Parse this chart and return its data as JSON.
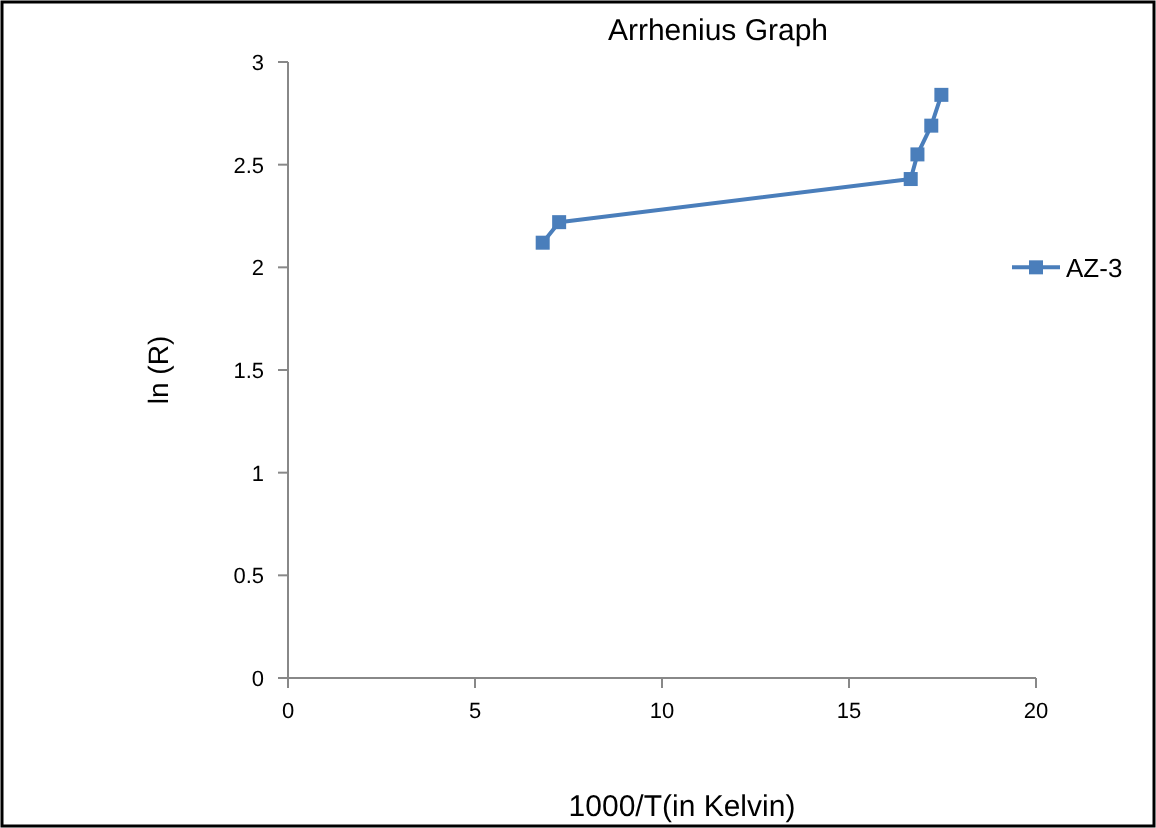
{
  "chart_data": {
    "type": "line",
    "title": "Arrhenius Graph",
    "xlabel": "1000/T(in Kelvin)",
    "ylabel": "ln (R)",
    "xlim": [
      0,
      20
    ],
    "xticks": [
      0,
      5,
      10,
      15,
      20
    ],
    "ylim": [
      0,
      3
    ],
    "yticks": [
      0,
      0.5,
      1,
      1.5,
      2,
      2.5,
      3
    ],
    "grid": false,
    "legend": "right",
    "marker": "square",
    "line_style": "solid",
    "series": [
      {
        "name": "AZ-3",
        "color": "#4a7ebb",
        "x": [
          6.81,
          7.25,
          16.65,
          16.83,
          17.2,
          17.47
        ],
        "values": [
          2.12,
          2.22,
          2.43,
          2.55,
          2.69,
          2.84
        ]
      }
    ]
  }
}
